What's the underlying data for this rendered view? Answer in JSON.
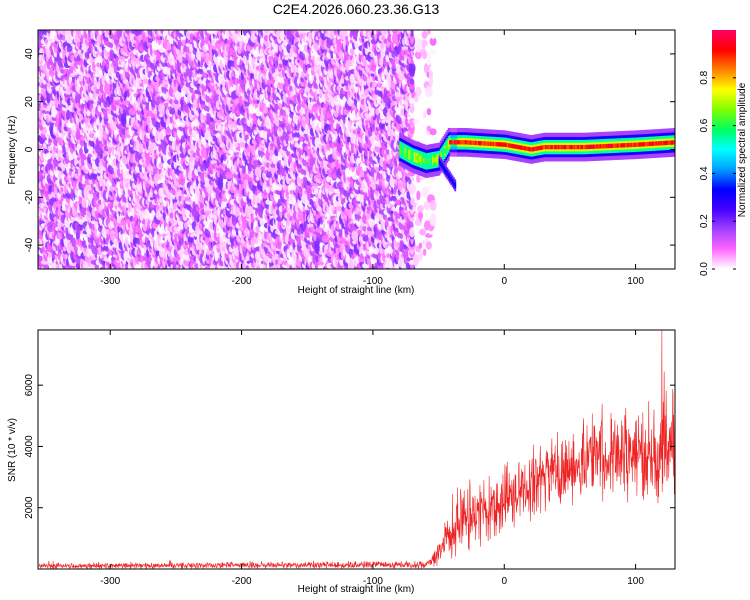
{
  "title": "C2E4.2026.060.23.36.G13",
  "chart_data": [
    {
      "type": "heatmap",
      "name": "spectrogram",
      "xlabel": "Height of straight line (km)",
      "ylabel": "Frequency (Hz)",
      "xlim": [
        -355,
        130
      ],
      "ylim": [
        -50,
        50
      ],
      "xticks": [
        -300,
        -200,
        -100,
        0,
        100
      ],
      "yticks": [
        -40,
        -20,
        0,
        20,
        40
      ],
      "xtick_labels": [
        "-300",
        "-200",
        "-100",
        "0",
        "100"
      ],
      "ytick_labels": [
        "-40",
        "-20",
        "0",
        "20",
        "40"
      ],
      "noise_region": {
        "x_from": -355,
        "x_to": -70,
        "sparse_to": -53,
        "amplitude_range": [
          0.0,
          0.2
        ]
      },
      "signal_trace": [
        {
          "x": -80,
          "y": 0
        },
        {
          "x": -70,
          "y": -3
        },
        {
          "x": -60,
          "y": -5
        },
        {
          "x": -50,
          "y": -4
        },
        {
          "x": -42,
          "y": 3
        },
        {
          "x": -30,
          "y": 3
        },
        {
          "x": 0,
          "y": 2
        },
        {
          "x": 20,
          "y": 0
        },
        {
          "x": 30,
          "y": 1
        },
        {
          "x": 60,
          "y": 1
        },
        {
          "x": 100,
          "y": 2
        },
        {
          "x": 130,
          "y": 3
        }
      ],
      "branch_trace": [
        {
          "x": -50,
          "y": -5
        },
        {
          "x": -44,
          "y": -10
        },
        {
          "x": -38,
          "y": -15
        }
      ]
    },
    {
      "type": "line",
      "name": "snr",
      "xlabel": "Height of straight line (km)",
      "ylabel": "SNR (10 * v/v)",
      "xlim": [
        -355,
        130
      ],
      "ylim": [
        0,
        7800
      ],
      "xticks": [
        -300,
        -200,
        -100,
        0,
        100
      ],
      "yticks": [
        2000,
        4000,
        6000
      ],
      "xtick_labels": [
        "-300",
        "-200",
        "-100",
        "0",
        "100"
      ],
      "ytick_labels": [
        "2000",
        "4000",
        "6000"
      ],
      "color": "#ee2222",
      "envelope": [
        {
          "x": -355,
          "mean": 100,
          "spread": 110
        },
        {
          "x": -60,
          "mean": 140,
          "spread": 140
        },
        {
          "x": -52,
          "mean": 400,
          "spread": 400
        },
        {
          "x": -45,
          "mean": 1000,
          "spread": 900
        },
        {
          "x": -35,
          "mean": 1500,
          "spread": 1300
        },
        {
          "x": -20,
          "mean": 1800,
          "spread": 1400
        },
        {
          "x": 0,
          "mean": 2200,
          "spread": 1300
        },
        {
          "x": 30,
          "mean": 3000,
          "spread": 1300
        },
        {
          "x": 70,
          "mean": 3700,
          "spread": 1500
        },
        {
          "x": 100,
          "mean": 3800,
          "spread": 1800
        },
        {
          "x": 130,
          "mean": 3800,
          "spread": 2000
        }
      ],
      "peak": {
        "x": 120,
        "y": 7800
      }
    }
  ],
  "colorbar": {
    "label": "Normalized spectral amplitude",
    "range": [
      0,
      1
    ],
    "ticks": [
      0.0,
      0.2,
      0.4,
      0.6,
      0.8
    ],
    "tick_labels": [
      "0.0",
      "0.2",
      "0.4",
      "0.6",
      "0.8"
    ],
    "stops": [
      "#ffffff",
      "#ff66ff",
      "#a040ff",
      "#4400ff",
      "#0000ff",
      "#00a0ff",
      "#00ffff",
      "#00ff60",
      "#80ff00",
      "#ffff00",
      "#ff8000",
      "#ff0000",
      "#ff0066"
    ]
  }
}
